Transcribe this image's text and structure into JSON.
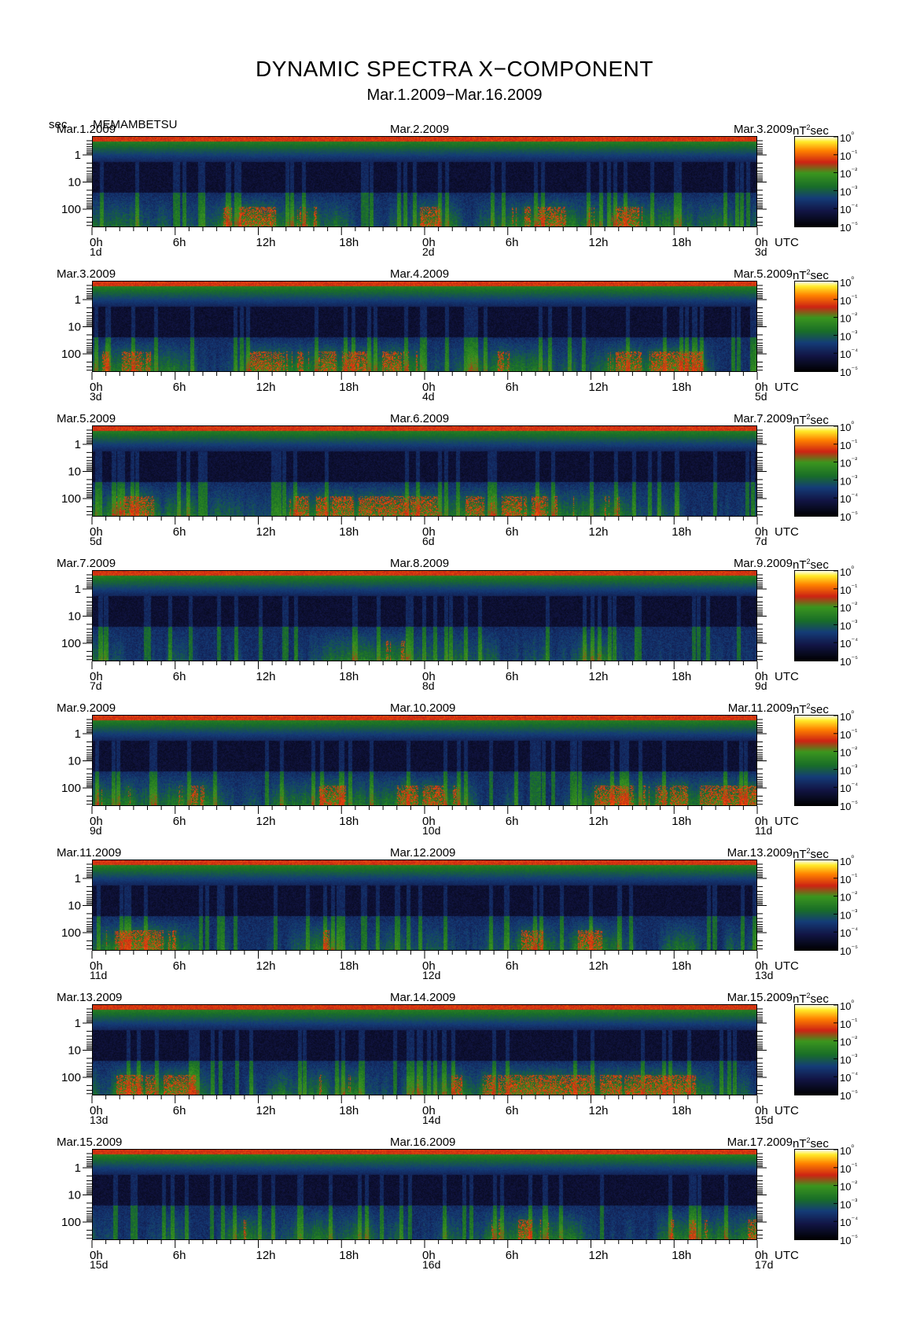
{
  "title": "DYNAMIC SPECTRA X−COMPONENT",
  "subtitle": "Mar.1.2009−Mar.16.2009",
  "unit_label": "sec",
  "station": "MEMAMBETSU",
  "colors": {
    "plot_background": "#000000",
    "frame": "#000000"
  },
  "chart_data": {
    "type": "heatmap",
    "y_axis": {
      "label": "sec",
      "scale": "log",
      "ticks": [
        "1",
        "10",
        "100"
      ],
      "direction": "period increases downward"
    },
    "x_axis": {
      "label": "UTC",
      "ticks": [
        "0h",
        "6h",
        "12h",
        "18h",
        "0h",
        "6h",
        "12h",
        "18h",
        "0h"
      ]
    },
    "colorbar": {
      "unit": "nT²sec",
      "scale": "log",
      "ticks": [
        "10⁰",
        "10⁻¹",
        "10⁻²",
        "10⁻³",
        "10⁻⁴",
        "10⁻⁵"
      ],
      "range": [
        1e-05,
        1
      ]
    },
    "panels": [
      {
        "start_date": "Mar.1.2009",
        "mid_date": "Mar.2.2009",
        "end_date": "Mar.3.2009",
        "day_start": "1d",
        "day_mid": "2d",
        "day_end": "3d"
      },
      {
        "start_date": "Mar.3.2009",
        "mid_date": "Mar.4.2009",
        "end_date": "Mar.5.2009",
        "day_start": "3d",
        "day_mid": "4d",
        "day_end": "5d"
      },
      {
        "start_date": "Mar.5.2009",
        "mid_date": "Mar.6.2009",
        "end_date": "Mar.7.2009",
        "day_start": "5d",
        "day_mid": "6d",
        "day_end": "7d"
      },
      {
        "start_date": "Mar.7.2009",
        "mid_date": "Mar.8.2009",
        "end_date": "Mar.9.2009",
        "day_start": "7d",
        "day_mid": "8d",
        "day_end": "9d"
      },
      {
        "start_date": "Mar.9.2009",
        "mid_date": "Mar.10.2009",
        "end_date": "Mar.11.2009",
        "day_start": "9d",
        "day_mid": "10d",
        "day_end": "11d"
      },
      {
        "start_date": "Mar.11.2009",
        "mid_date": "Mar.12.2009",
        "end_date": "Mar.13.2009",
        "day_start": "11d",
        "day_mid": "12d",
        "day_end": "13d"
      },
      {
        "start_date": "Mar.13.2009",
        "mid_date": "Mar.14.2009",
        "end_date": "Mar.15.2009",
        "day_start": "13d",
        "day_mid": "14d",
        "day_end": "15d"
      },
      {
        "start_date": "Mar.15.2009",
        "mid_date": "Mar.16.2009",
        "end_date": "Mar.17.2009",
        "day_start": "15d",
        "day_mid": "16d",
        "day_end": "17d"
      }
    ]
  }
}
